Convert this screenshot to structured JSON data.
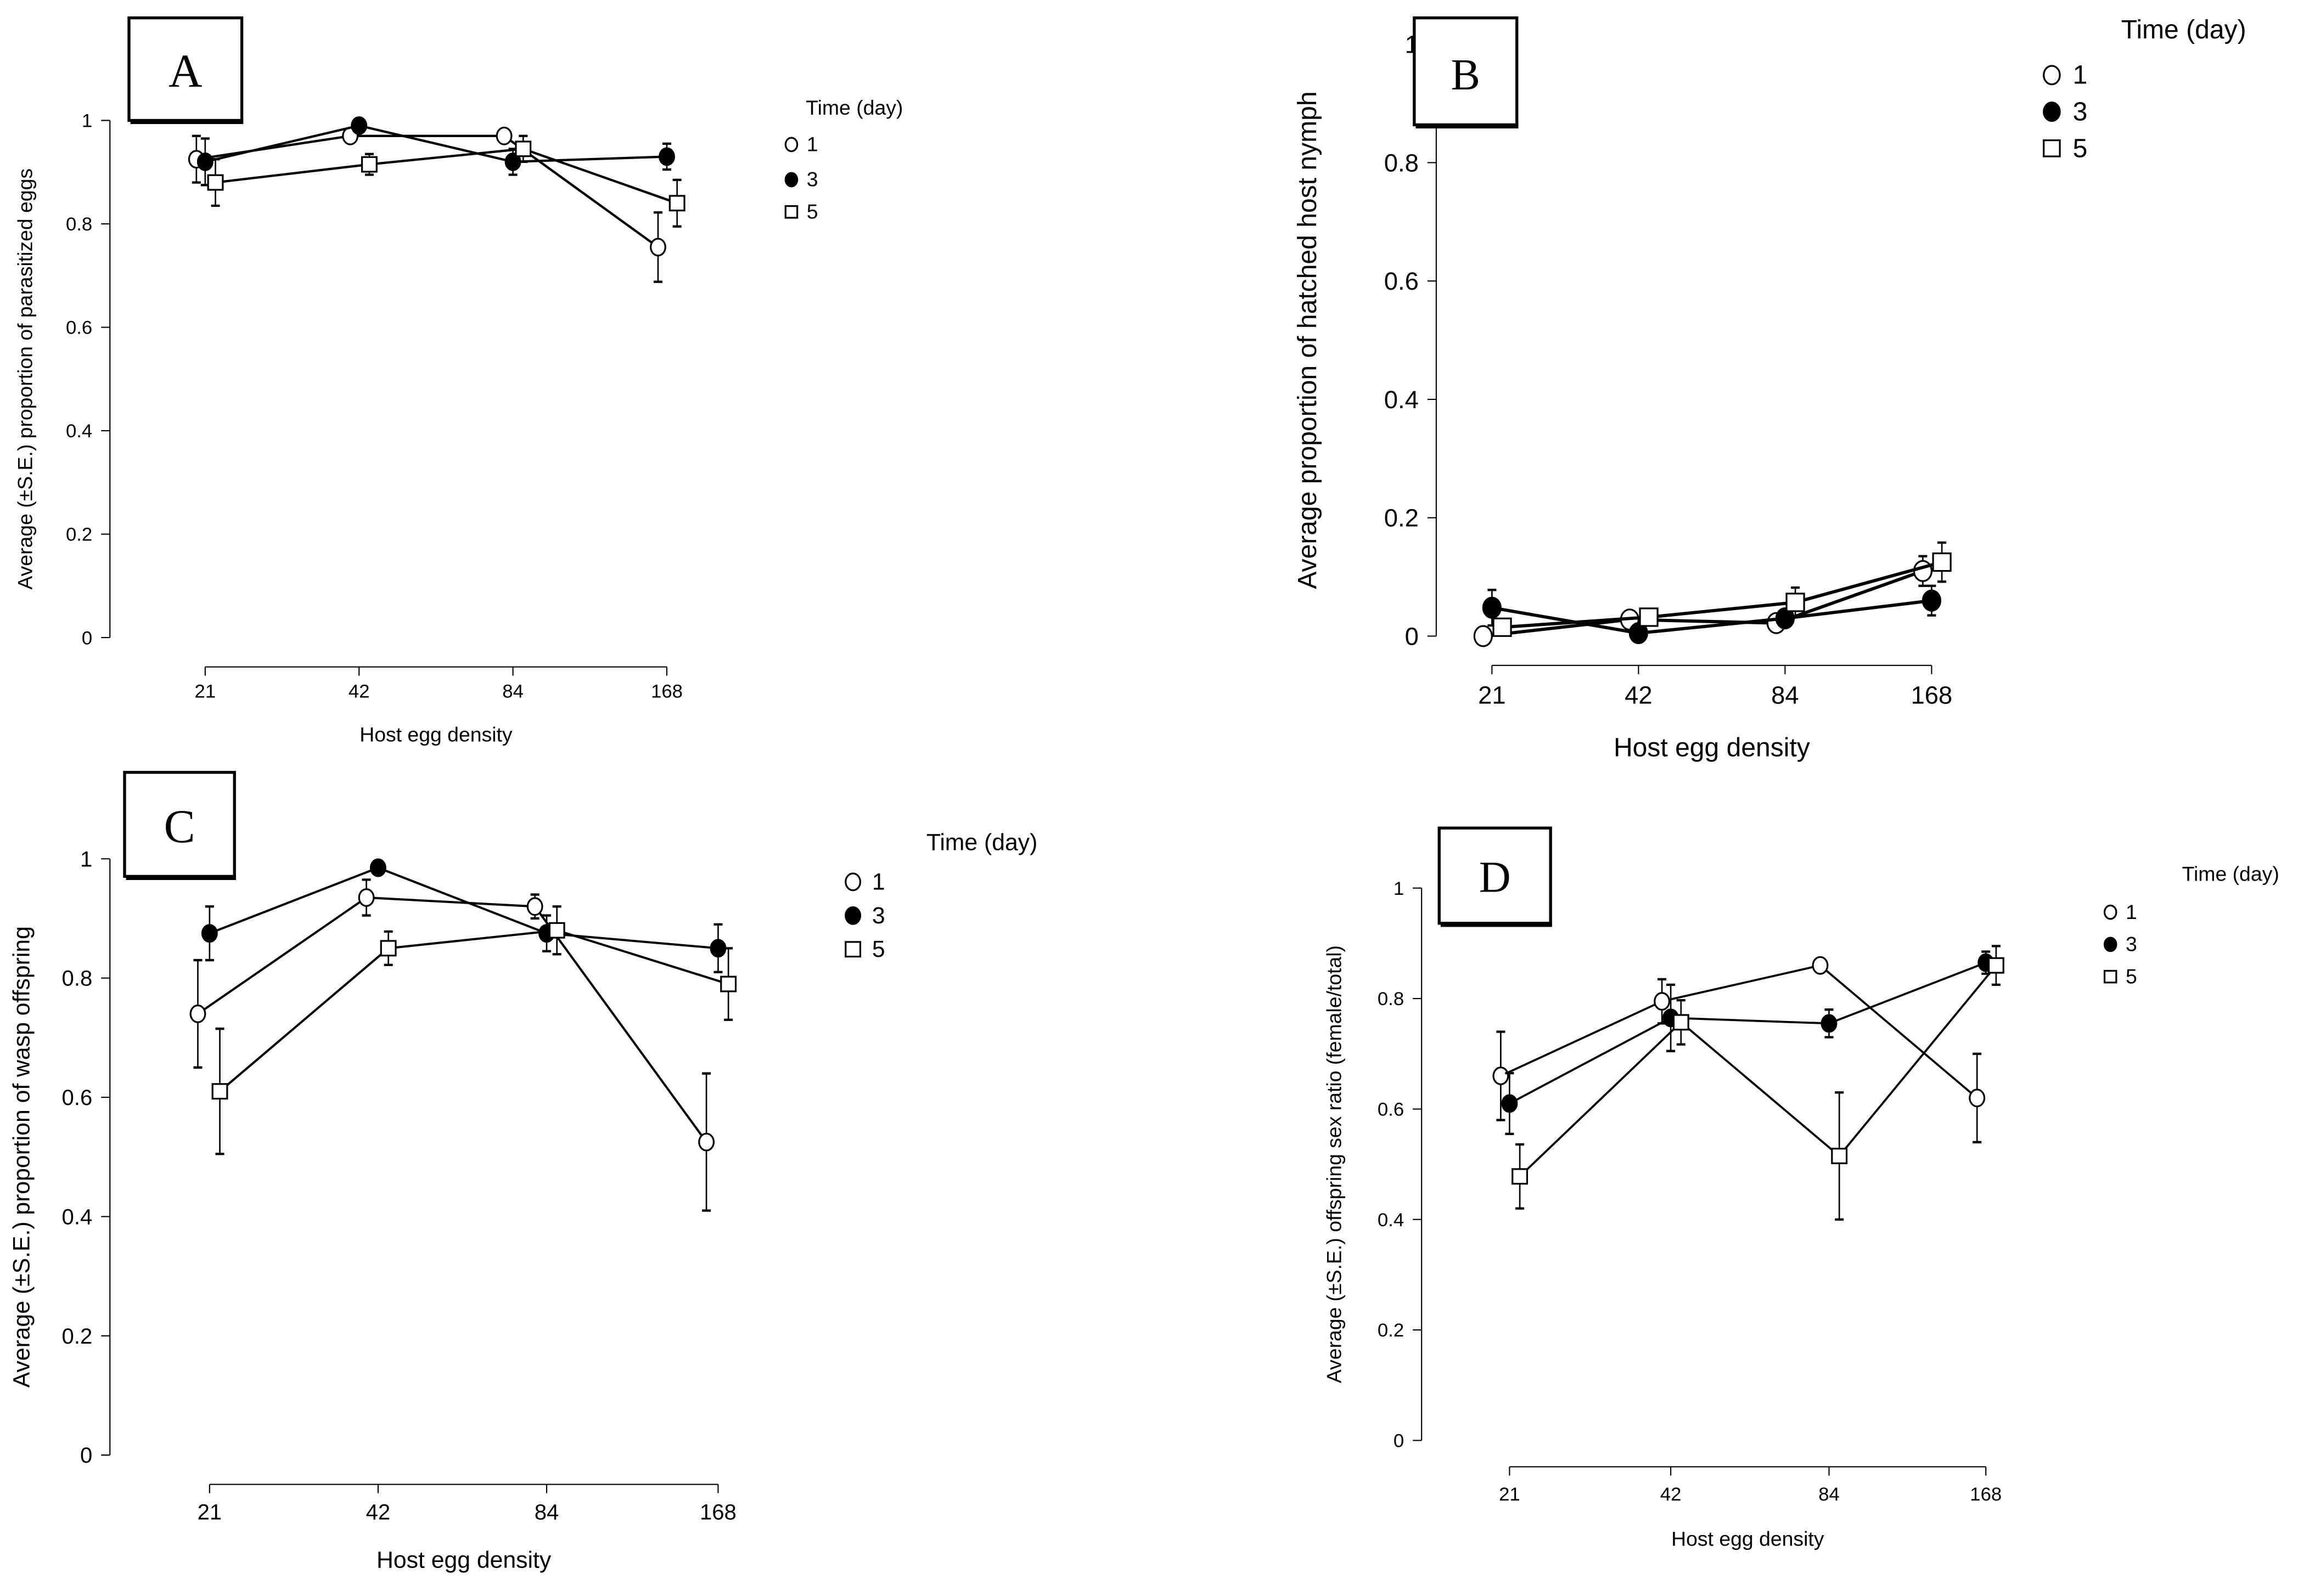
{
  "chart_data": [
    {
      "type": "line",
      "panel_label": "A",
      "x": [
        "21",
        "42",
        "84",
        "168"
      ],
      "xlabel": "Host egg density",
      "ylabel": "Average (±S.E.) proportion of parasitized eggs",
      "ylim": [
        0,
        1
      ],
      "yticks": [
        "0",
        "0.2",
        "0.4",
        "0.6",
        "0.8",
        "1"
      ],
      "legend_title": "Time (day)",
      "legend_placement": "right",
      "series": [
        {
          "name": "1",
          "marker": "open-circle",
          "values": [
            0.925,
            0.97,
            0.97,
            0.755
          ],
          "se": [
            0.045,
            0.01,
            0.0,
            0.067
          ]
        },
        {
          "name": "3",
          "marker": "filled-circle",
          "values": [
            0.92,
            0.99,
            0.92,
            0.93
          ],
          "se": [
            0.045,
            0.0,
            0.025,
            0.025
          ]
        },
        {
          "name": "5",
          "marker": "open-square",
          "values": [
            0.88,
            0.915,
            0.945,
            0.84
          ],
          "se": [
            0.045,
            0.02,
            0.025,
            0.045
          ]
        }
      ]
    },
    {
      "type": "line",
      "panel_label": "B",
      "x": [
        "21",
        "42",
        "84",
        "168"
      ],
      "xlabel": "Host egg density",
      "ylabel": "Average proportion of hatched host nymph",
      "ylim": [
        0,
        1
      ],
      "yticks": [
        "0",
        "0.2",
        "0.4",
        "0.6",
        "0.8",
        "1"
      ],
      "legend_title": "Time (day)",
      "legend_placement": "top-right",
      "series": [
        {
          "name": "1",
          "marker": "open-circle",
          "values": [
            0.0,
            0.028,
            0.022,
            0.11
          ],
          "se": [
            0.0,
            0.01,
            0.0,
            0.025
          ]
        },
        {
          "name": "3",
          "marker": "filled-circle",
          "values": [
            0.048,
            0.005,
            0.03,
            0.06
          ],
          "se": [
            0.03,
            0.0,
            0.0,
            0.025
          ]
        },
        {
          "name": "5",
          "marker": "open-square",
          "values": [
            0.015,
            0.032,
            0.057,
            0.125
          ],
          "se": [
            0.0,
            0.0,
            0.025,
            0.033
          ]
        }
      ]
    },
    {
      "type": "line",
      "panel_label": "C",
      "x": [
        "21",
        "42",
        "84",
        "168"
      ],
      "xlabel": "Host egg density",
      "ylabel": "Average (±S.E.) proportion of wasp offspring",
      "ylim": [
        0,
        1
      ],
      "yticks": [
        "0",
        "0.2",
        "0.4",
        "0.6",
        "0.8",
        "1"
      ],
      "legend_title": "Time (day)",
      "legend_placement": "right",
      "series": [
        {
          "name": "1",
          "marker": "open-circle",
          "values": [
            0.74,
            0.935,
            0.92,
            0.525
          ],
          "se": [
            0.09,
            0.03,
            0.02,
            0.115
          ]
        },
        {
          "name": "3",
          "marker": "filled-circle",
          "values": [
            0.875,
            0.985,
            0.875,
            0.85
          ],
          "se": [
            0.045,
            0.0,
            0.03,
            0.04
          ]
        },
        {
          "name": "5",
          "marker": "open-square",
          "values": [
            0.61,
            0.85,
            0.88,
            0.79
          ],
          "se": [
            0.105,
            0.028,
            0.04,
            0.06
          ]
        }
      ]
    },
    {
      "type": "line",
      "panel_label": "D",
      "x": [
        "21",
        "42",
        "84",
        "168"
      ],
      "xlabel": "Host egg density",
      "ylabel": "Average (±S.E.) offspring sex ratio (female/total)",
      "ylim": [
        0,
        1
      ],
      "yticks": [
        "0",
        "0.2",
        "0.4",
        "0.6",
        "0.8",
        "1"
      ],
      "legend_title": "Time (day)",
      "legend_placement": "right",
      "series": [
        {
          "name": "1",
          "marker": "open-circle",
          "values": [
            0.66,
            0.795,
            0.86,
            0.62
          ],
          "se": [
            0.08,
            0.04,
            0.0,
            0.08
          ]
        },
        {
          "name": "3",
          "marker": "filled-circle",
          "values": [
            0.61,
            0.765,
            0.755,
            0.865
          ],
          "se": [
            0.055,
            0.06,
            0.025,
            0.02
          ]
        },
        {
          "name": "5",
          "marker": "open-square",
          "values": [
            0.478,
            0.757,
            0.515,
            0.86
          ],
          "se": [
            0.058,
            0.04,
            0.115,
            0.035
          ]
        }
      ]
    }
  ]
}
